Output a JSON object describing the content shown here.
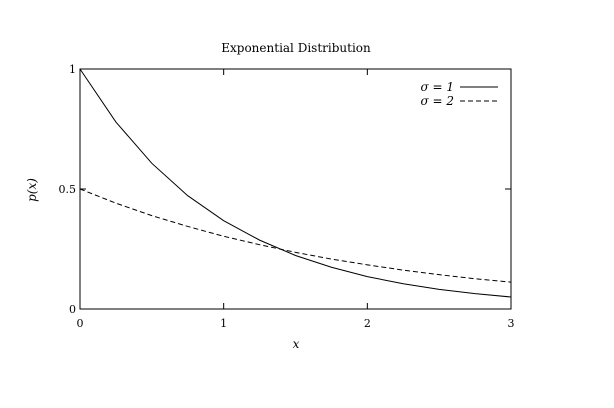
{
  "chart_data": {
    "type": "line",
    "title": "Exponential Distribution",
    "xlabel": "x",
    "ylabel": "p(x)",
    "xlim": [
      0,
      3
    ],
    "ylim": [
      0,
      1
    ],
    "xticks": [
      "0",
      "1",
      "2",
      "3"
    ],
    "yticks": [
      "0",
      "0.5",
      "1"
    ],
    "x": [
      0,
      0.25,
      0.5,
      0.75,
      1,
      1.25,
      1.5,
      1.75,
      2,
      2.25,
      2.5,
      2.75,
      3
    ],
    "series": [
      {
        "name": "σ = 1",
        "style": "solid",
        "values": [
          1,
          0.779,
          0.607,
          0.472,
          0.368,
          0.287,
          0.223,
          0.174,
          0.135,
          0.105,
          0.082,
          0.064,
          0.05
        ]
      },
      {
        "name": "σ = 2",
        "style": "dashed",
        "values": [
          0.5,
          0.441,
          0.389,
          0.344,
          0.303,
          0.268,
          0.236,
          0.208,
          0.184,
          0.162,
          0.143,
          0.126,
          0.112
        ]
      }
    ],
    "grid": false,
    "legend_position": "top-right",
    "colors": {
      "line": "#000000",
      "background": "#ffffff"
    }
  }
}
